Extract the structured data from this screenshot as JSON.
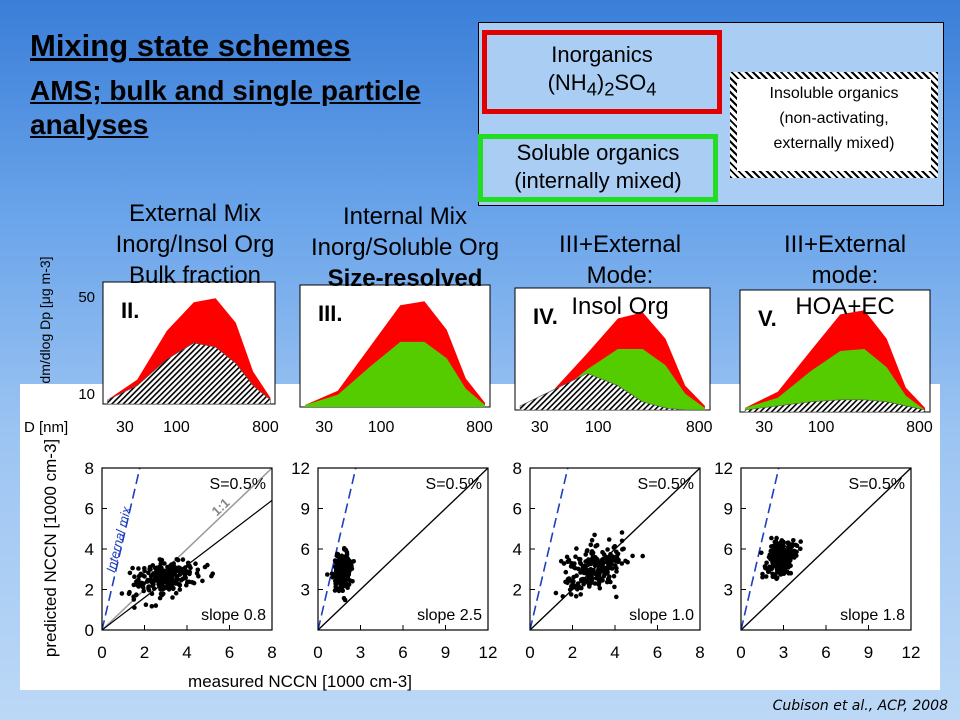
{
  "title": "Mixing state schemes",
  "subtitle": "AMS; bulk and single particle analyses",
  "legend": {
    "inorganics_line1": "Inorganics",
    "inorganics_formula": "(NH4)2SO4",
    "soluble_line1": "Soluble organics",
    "soluble_line2": "(internally mixed)",
    "insoluble_line1": "Insoluble organics",
    "insoluble_line2": "(non-activating,",
    "insoluble_line3": "externally mixed)"
  },
  "columns": [
    {
      "line1": "External Mix",
      "line2": "Inorg/Insol Org",
      "line3": "Bulk fraction"
    },
    {
      "line1": "Internal Mix",
      "line2": "Inorg/Soluble Org",
      "line3": "Size-resolved"
    },
    {
      "line1": "III+External",
      "line2": "Mode:",
      "line3": "Insol Org"
    },
    {
      "line1": "III+External",
      "line2": "mode:",
      "line3": "HOA+EC"
    }
  ],
  "colors": {
    "inorganic": "#ff0000",
    "soluble_organic": "#55cc00",
    "insoluble_hatch": "#000000",
    "internal_mix_line": "#1f3fbf"
  },
  "citation": "Cubison et al., ACP, 2008",
  "chart_data": [
    {
      "type": "area",
      "panel": "II.",
      "ylabel": "dm/dlog Dp [μg m-3]",
      "xlabel": "D [nm]",
      "x_ticks": [
        "30",
        "100",
        "800"
      ],
      "y_ticks": [
        "10",
        "50"
      ],
      "x_scale": "log",
      "series": [
        {
          "name": "Inorganics",
          "x": [
            20,
            40,
            80,
            150,
            250,
            400,
            600,
            900
          ],
          "values": [
            2,
            12,
            36,
            50,
            52,
            40,
            16,
            3
          ]
        },
        {
          "name": "Insoluble organics",
          "x": [
            20,
            40,
            80,
            150,
            250,
            400,
            600,
            900
          ],
          "values": [
            2,
            9,
            22,
            30,
            28,
            20,
            9,
            2
          ]
        }
      ]
    },
    {
      "type": "area",
      "panel": "III.",
      "x_ticks": [
        "30",
        "100",
        "800"
      ],
      "x_scale": "log",
      "series": [
        {
          "name": "Inorganics",
          "x": [
            20,
            40,
            80,
            150,
            250,
            400,
            600,
            900
          ],
          "values": [
            1,
            8,
            30,
            50,
            52,
            38,
            14,
            2
          ]
        },
        {
          "name": "Soluble organics",
          "x": [
            20,
            40,
            80,
            150,
            250,
            400,
            600,
            900
          ],
          "values": [
            1,
            6,
            20,
            32,
            32,
            24,
            9,
            1
          ]
        }
      ]
    },
    {
      "type": "area",
      "panel": "IV.",
      "x_ticks": [
        "30",
        "100",
        "800"
      ],
      "x_scale": "log",
      "series": [
        {
          "name": "Inorganics",
          "x": [
            20,
            40,
            80,
            150,
            250,
            400,
            600,
            900
          ],
          "values": [
            2,
            10,
            28,
            45,
            48,
            35,
            12,
            2
          ]
        },
        {
          "name": "Soluble organics",
          "x": [
            20,
            40,
            80,
            150,
            250,
            400,
            600,
            900
          ],
          "values": [
            2,
            7,
            20,
            30,
            30,
            22,
            8,
            1
          ]
        },
        {
          "name": "Insoluble organics",
          "x": [
            20,
            40,
            80,
            150,
            250,
            400,
            600,
            900
          ],
          "values": [
            2,
            10,
            18,
            12,
            4,
            1,
            0,
            0
          ]
        }
      ]
    },
    {
      "type": "area",
      "panel": "V.",
      "x_ticks": [
        "30",
        "100",
        "800"
      ],
      "x_scale": "log",
      "series": [
        {
          "name": "Inorganics",
          "x": [
            20,
            40,
            80,
            150,
            250,
            400,
            600,
            900
          ],
          "values": [
            2,
            10,
            30,
            48,
            50,
            36,
            12,
            2
          ]
        },
        {
          "name": "Soluble organics",
          "x": [
            20,
            40,
            80,
            150,
            250,
            400,
            600,
            900
          ],
          "values": [
            2,
            7,
            20,
            30,
            31,
            22,
            8,
            1
          ]
        },
        {
          "name": "Insoluble organics",
          "x": [
            20,
            40,
            80,
            150,
            250,
            400,
            600,
            900
          ],
          "values": [
            1,
            3,
            5,
            6,
            6,
            5,
            3,
            1
          ]
        }
      ]
    },
    {
      "type": "scatter",
      "ylabel": "predicted NCCN [1000 cm-3]",
      "xlabel": "measured NCCN [1000 cm-3]",
      "xlim": [
        0,
        8
      ],
      "ylim": [
        0,
        8
      ],
      "x_ticks": [
        0,
        2,
        4,
        6,
        8
      ],
      "y_ticks": [
        0,
        2,
        4,
        6,
        8
      ],
      "supersaturation": "S=0.5%",
      "slope_text": "slope 0.8",
      "slope": 0.8,
      "one_to_one_label": "1:1",
      "internal_mix_label": "Internal mix",
      "internal_mix_slope": 4.5,
      "cluster": {
        "center": [
          3.0,
          2.6
        ],
        "spread": [
          1.3,
          0.7
        ],
        "n": 230
      }
    },
    {
      "type": "scatter",
      "xlim": [
        0,
        12
      ],
      "ylim": [
        0,
        12
      ],
      "x_ticks": [
        0,
        3,
        6,
        9,
        12
      ],
      "y_ticks": [
        3,
        6,
        9,
        12
      ],
      "supersaturation": "S=0.5%",
      "slope_text": "slope 2.5",
      "slope": 2.5,
      "internal_mix_slope": 4.5,
      "cluster": {
        "center": [
          1.7,
          4.3
        ],
        "spread": [
          0.5,
          1.1
        ],
        "n": 220
      }
    },
    {
      "type": "scatter",
      "xlim": [
        0,
        8
      ],
      "ylim": [
        0,
        8
      ],
      "x_ticks": [
        0,
        2,
        4,
        6,
        8
      ],
      "y_ticks": [
        2,
        4,
        6,
        8
      ],
      "supersaturation": "S=0.5%",
      "slope_text": "slope 1.0",
      "slope": 1.0,
      "internal_mix_slope": 4.5,
      "cluster": {
        "center": [
          3.0,
          3.1
        ],
        "spread": [
          1.2,
          0.9
        ],
        "n": 230
      }
    },
    {
      "type": "scatter",
      "xlim": [
        0,
        12
      ],
      "ylim": [
        0,
        12
      ],
      "x_ticks": [
        0,
        3,
        6,
        9,
        12
      ],
      "y_ticks": [
        3,
        6,
        9,
        12
      ],
      "supersaturation": "S=0.5%",
      "slope_text": "slope 1.8",
      "slope": 1.8,
      "internal_mix_slope": 4.5,
      "cluster": {
        "center": [
          2.8,
          5.3
        ],
        "spread": [
          0.8,
          1.2
        ],
        "n": 230
      }
    }
  ]
}
